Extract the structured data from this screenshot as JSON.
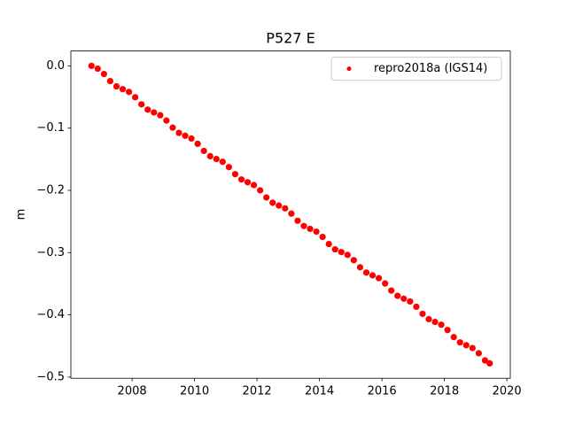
{
  "chart_data": {
    "type": "scatter",
    "title": "P527 E",
    "ylabel": "m",
    "x": [
      2006.7,
      2006.9,
      2007.1,
      2007.3,
      2007.5,
      2007.7,
      2007.9,
      2008.1,
      2008.3,
      2008.5,
      2008.7,
      2008.9,
      2009.1,
      2009.3,
      2009.5,
      2009.7,
      2009.9,
      2010.1,
      2010.3,
      2010.5,
      2010.7,
      2010.9,
      2011.1,
      2011.3,
      2011.5,
      2011.7,
      2011.9,
      2012.1,
      2012.3,
      2012.5,
      2012.7,
      2012.9,
      2013.1,
      2013.3,
      2013.5,
      2013.7,
      2013.9,
      2014.1,
      2014.3,
      2014.5,
      2014.7,
      2014.9,
      2015.1,
      2015.3,
      2015.5,
      2015.7,
      2015.9,
      2016.1,
      2016.3,
      2016.5,
      2016.7,
      2016.9,
      2017.1,
      2017.3,
      2017.5,
      2017.7,
      2017.9,
      2018.1,
      2018.3,
      2018.5,
      2018.7,
      2018.9,
      2019.1,
      2019.3,
      2019.45
    ],
    "series": [
      {
        "name": "repro2018a (IGS14)",
        "color": "#ff0000",
        "values": [
          0.0,
          -0.0045,
          -0.013,
          -0.0244,
          -0.0329,
          -0.0374,
          -0.0419,
          -0.0504,
          -0.0618,
          -0.0703,
          -0.0748,
          -0.0793,
          -0.0878,
          -0.0992,
          -0.1077,
          -0.1122,
          -0.1167,
          -0.1252,
          -0.1366,
          -0.1451,
          -0.1496,
          -0.1541,
          -0.1626,
          -0.174,
          -0.1825,
          -0.187,
          -0.1915,
          -0.2,
          -0.2114,
          -0.2199,
          -0.2244,
          -0.2289,
          -0.2374,
          -0.2488,
          -0.2573,
          -0.2618,
          -0.2663,
          -0.2748,
          -0.2862,
          -0.2947,
          -0.2992,
          -0.3037,
          -0.3122,
          -0.3236,
          -0.3321,
          -0.3366,
          -0.3411,
          -0.3496,
          -0.361,
          -0.3695,
          -0.374,
          -0.3785,
          -0.387,
          -0.3984,
          -0.4069,
          -0.4114,
          -0.4159,
          -0.4244,
          -0.4358,
          -0.4443,
          -0.4488,
          -0.4533,
          -0.4618,
          -0.4732,
          -0.478
        ]
      }
    ],
    "xlim": [
      2006.04,
      2020.11
    ],
    "ylim": [
      -0.5019,
      0.0239
    ],
    "xticks": [
      2008,
      2010,
      2012,
      2014,
      2016,
      2018,
      2020
    ],
    "yticks": [
      {
        "value": 0.0,
        "label": "0.0"
      },
      {
        "value": -0.1,
        "label": "−0.1"
      },
      {
        "value": -0.2,
        "label": "−0.2"
      },
      {
        "value": -0.3,
        "label": "−0.3"
      },
      {
        "value": -0.4,
        "label": "−0.4"
      },
      {
        "value": -0.5,
        "label": "−0.5"
      }
    ],
    "grid": false,
    "legend": "upper right"
  }
}
